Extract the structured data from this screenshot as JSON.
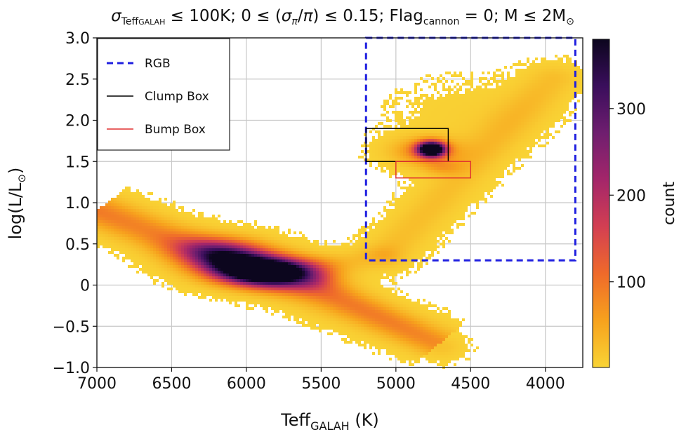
{
  "chart_data": {
    "type": "heatmap",
    "title_parts": {
      "sigma": "σ",
      "teff_sub": "Teff",
      "galah_sub": "GALAH",
      "p1": " ≤ 100K; 0 ≤ (",
      "sigma2": "σ",
      "pi_sub": "π",
      "p2": "/",
      "pi": "π",
      "p3": ") ≤ 0.15; Flag",
      "cannon_sub": "cannon",
      "p4": " = 0; M ≤ 2M",
      "sun": "⊙"
    },
    "xlabel_parts": {
      "main": "Teff",
      "sub": "GALAH",
      "unit": " (K)"
    },
    "ylabel_parts": {
      "main": "log(L/L",
      "sun": "⊙",
      "close": ")"
    },
    "xlim": [
      7000,
      3750
    ],
    "ylim": [
      -1.0,
      3.0
    ],
    "x_ticks": [
      {
        "value": 7000,
        "label": "7000"
      },
      {
        "value": 6500,
        "label": "6500"
      },
      {
        "value": 6000,
        "label": "6000"
      },
      {
        "value": 5500,
        "label": "5500"
      },
      {
        "value": 5000,
        "label": "5000"
      },
      {
        "value": 4500,
        "label": "4500"
      },
      {
        "value": 4000,
        "label": "4000"
      }
    ],
    "y_ticks": [
      {
        "value": -1.0,
        "label": "−1.0"
      },
      {
        "value": -0.5,
        "label": "−0.5"
      },
      {
        "value": 0.0,
        "label": "0"
      },
      {
        "value": 0.5,
        "label": "0.5"
      },
      {
        "value": 1.0,
        "label": "1.0"
      },
      {
        "value": 1.5,
        "label": "1.5"
      },
      {
        "value": 2.0,
        "label": "2.0"
      },
      {
        "value": 2.5,
        "label": "2.5"
      },
      {
        "value": 3.0,
        "label": "3.0"
      }
    ],
    "grid": true,
    "legend_position": "top-left",
    "regions": [
      {
        "name": "RGB",
        "teff_max": 5200,
        "teff_min": 3800,
        "logl_min": 0.3,
        "logl_max": 3.0,
        "color": "#1f1fe0",
        "style": "dashed"
      },
      {
        "name": "Clump Box",
        "teff_max": 5200,
        "teff_min": 4650,
        "logl_min": 1.5,
        "logl_max": 1.9,
        "color": "#000000",
        "style": "solid"
      },
      {
        "name": "Bump Box",
        "teff_max": 5000,
        "teff_min": 4500,
        "logl_min": 1.3,
        "logl_max": 1.5,
        "color": "#e03030",
        "style": "solid"
      }
    ],
    "legend": [
      {
        "label": "RGB",
        "region": "RGB"
      },
      {
        "label": "Clump Box",
        "region": "Clump Box"
      },
      {
        "label": "Bump Box",
        "region": "Bump Box"
      }
    ],
    "density_components": [
      {
        "feature": "main sequence / turnoff",
        "teff": 5850,
        "logl": 0.15,
        "peak": 380
      },
      {
        "feature": "red clump",
        "teff": 4760,
        "logl": 1.65,
        "peak": 380
      },
      {
        "feature": "red giant branch",
        "teff": 4400,
        "logl": 1.9,
        "peak": 60
      },
      {
        "feature": "subgiant branch",
        "teff": 5200,
        "logl": 0.5,
        "peak": 40
      }
    ],
    "colorbar": {
      "label": "count",
      "min": 1,
      "max": 380,
      "ticks": [
        {
          "value": 100,
          "label": "100"
        },
        {
          "value": 200,
          "label": "200"
        },
        {
          "value": 300,
          "label": "300"
        }
      ],
      "colors": [
        "#f9d435",
        "#f7a21d",
        "#ef6a2a",
        "#d33f52",
        "#a4266a",
        "#6f1e6f",
        "#3a0e5c",
        "#0c061e"
      ]
    }
  }
}
